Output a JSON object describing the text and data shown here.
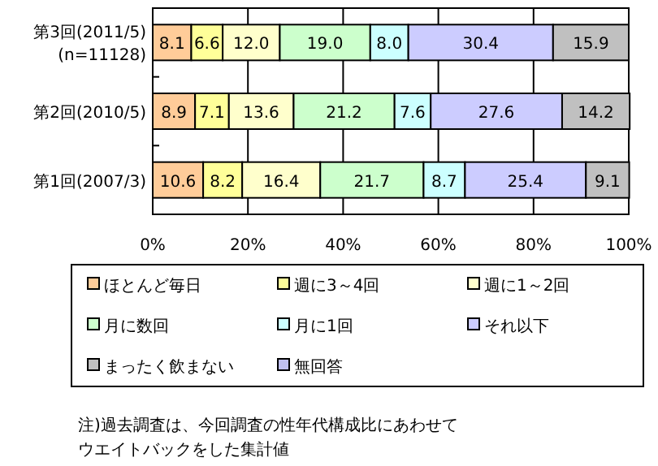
{
  "chart_data": {
    "type": "bar",
    "orientation": "horizontal",
    "stacked": true,
    "categories": [
      "第3回(2011/5)\n(n=11128)",
      "第2回(2010/5)",
      "第1回(2007/3)"
    ],
    "series": [
      {
        "name": "ほとんど毎日",
        "color": "#ffcc99",
        "values": [
          8.1,
          8.9,
          10.6
        ],
        "value_labels": [
          "8.1",
          "8.9",
          "10.6"
        ]
      },
      {
        "name": "週に3～4回",
        "color": "#ffff99",
        "values": [
          6.6,
          7.1,
          8.2
        ],
        "value_labels": [
          "6.6",
          "7.1",
          "8.2"
        ]
      },
      {
        "name": "週に1～2回",
        "color": "#ffffcc",
        "values": [
          12.0,
          13.6,
          16.4
        ],
        "value_labels": [
          "12.0",
          "13.6",
          "16.4"
        ]
      },
      {
        "name": "月に数回",
        "color": "#ccffcc",
        "values": [
          19.0,
          21.2,
          21.7
        ],
        "value_labels": [
          "19.0",
          "21.2",
          "21.7"
        ]
      },
      {
        "name": "月に1回",
        "color": "#ccffff",
        "values": [
          8.0,
          7.6,
          8.7
        ],
        "value_labels": [
          "8.0",
          "7.6",
          "8.7"
        ]
      },
      {
        "name": "それ以下",
        "color": "#ccccff",
        "values": [
          30.4,
          27.6,
          25.4
        ],
        "value_labels": [
          "30.4",
          "27.6",
          "25.4"
        ]
      },
      {
        "name": "まったく飲まない",
        "color": "#c0c0c0",
        "values": [
          15.9,
          14.2,
          9.1
        ],
        "value_labels": [
          "15.9",
          "14.2",
          "9.1"
        ]
      },
      {
        "name": "無回答",
        "color": "#c0c0f0",
        "values": [
          0,
          0,
          0
        ],
        "value_labels": [
          null,
          null,
          null
        ]
      }
    ],
    "xlim": [
      0,
      100
    ],
    "xticks": [
      {
        "value": 0,
        "label": "0%"
      },
      {
        "value": 20,
        "label": "20%"
      },
      {
        "value": 40,
        "label": "40%"
      },
      {
        "value": 60,
        "label": "60%"
      },
      {
        "value": 80,
        "label": "80%"
      },
      {
        "value": 100,
        "label": "100%"
      }
    ],
    "grid": "x",
    "legend": "bottom",
    "annotations": [
      "注)過去調査は、今回調査の性年代構成比にあわせて",
      "ウエイトバックをした集計値"
    ]
  }
}
